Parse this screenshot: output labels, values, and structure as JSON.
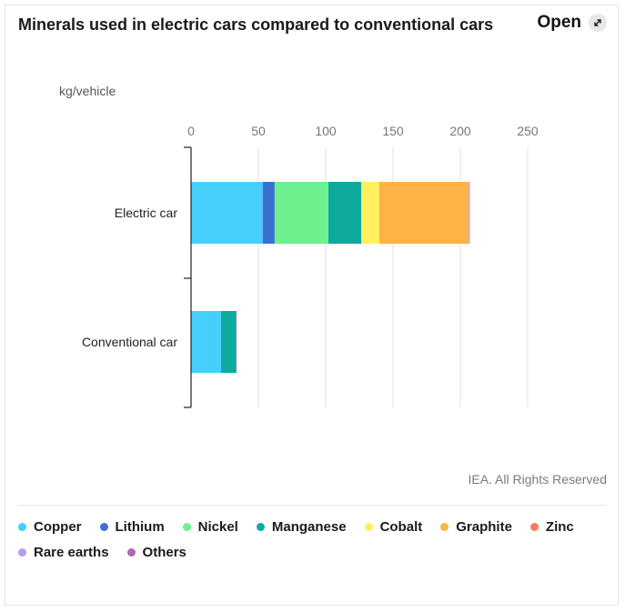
{
  "header": {
    "title": "Minerals used in electric cars compared to conventional cars",
    "open_label": "Open"
  },
  "footer": {
    "copyright": "IEA. All Rights Reserved"
  },
  "chart_data": {
    "type": "bar",
    "orientation": "horizontal",
    "stacked": true,
    "ylabel": "kg/vehicle",
    "xlim": [
      0,
      250
    ],
    "xticks": [
      0,
      50,
      100,
      150,
      200,
      250
    ],
    "grid": true,
    "legend_placement": "bottom",
    "categories": [
      "Electric car",
      "Conventional car"
    ],
    "series": [
      {
        "name": "Copper",
        "color": "#45d0fc",
        "values": [
          53.2,
          22.3
        ]
      },
      {
        "name": "Lithium",
        "color": "#3b6fd1",
        "values": [
          8.9,
          0
        ]
      },
      {
        "name": "Nickel",
        "color": "#6ef08e",
        "values": [
          39.9,
          0
        ]
      },
      {
        "name": "Manganese",
        "color": "#0eaa9d",
        "values": [
          24.5,
          11.2
        ]
      },
      {
        "name": "Cobalt",
        "color": "#fff05e",
        "values": [
          13.3,
          0
        ]
      },
      {
        "name": "Graphite",
        "color": "#ffb347",
        "values": [
          66.3,
          0
        ]
      },
      {
        "name": "Zinc",
        "color": "#ff7a5a",
        "values": [
          0.1,
          0.1
        ]
      },
      {
        "name": "Rare earths",
        "color": "#b49cf2",
        "values": [
          0.5,
          0
        ]
      },
      {
        "name": "Others",
        "color": "#b065b5",
        "values": [
          0.3,
          0.3
        ]
      }
    ]
  }
}
